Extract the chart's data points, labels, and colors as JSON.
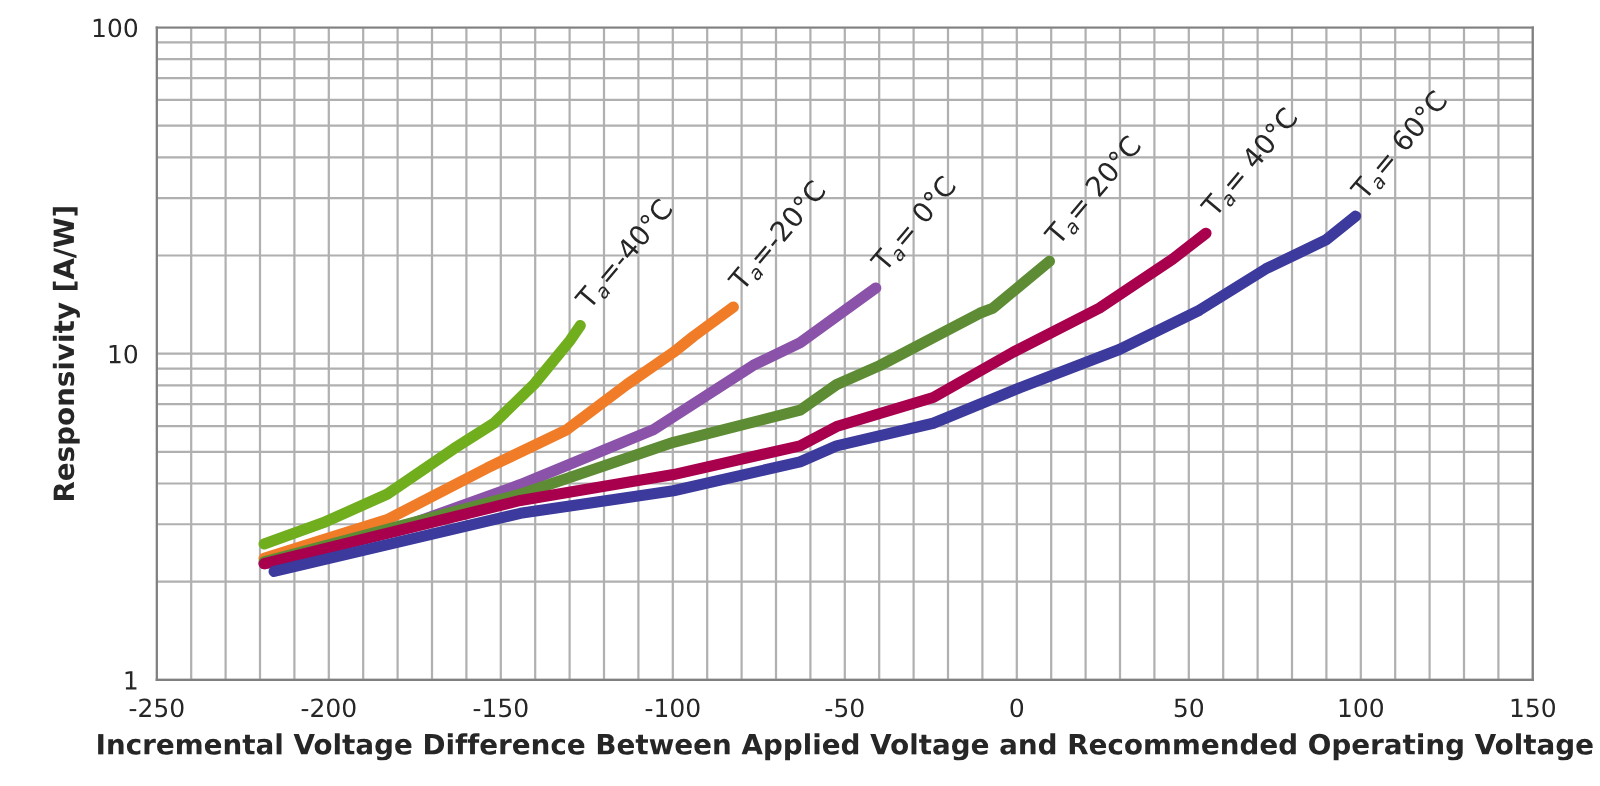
{
  "chart_data": {
    "type": "line",
    "xlabel": "Incremental Voltage Difference Between Applied Voltage and Recommended Operating Voltage",
    "ylabel": "Responsivity [A/W]",
    "xlim": [
      -250,
      150
    ],
    "xticks": [
      -250,
      -200,
      -150,
      -100,
      -50,
      0,
      50,
      100,
      150
    ],
    "ylim": [
      1,
      100
    ],
    "yticks": [
      1,
      10,
      100
    ],
    "log": "y",
    "grid": true,
    "legend": false,
    "line_style": "solid",
    "marker": "none",
    "series": [
      {
        "name": "T$_{a}$=-40°C",
        "color": "#70ae1e",
        "x": [
          -218.8,
          -201.7,
          -183.0,
          -163.7,
          -152.0,
          -140.4,
          -129.8,
          -126.9
        ],
        "values": [
          2.61,
          3.03,
          3.71,
          5.11,
          6.12,
          8.04,
          11.0,
          12.2
        ]
      },
      {
        "name": "T$_{a}$=-20°C",
        "color": "#f07c28",
        "x": [
          -218.8,
          -183.0,
          -154.0,
          -130.8,
          -113.4,
          -99.8,
          -94.0,
          -82.4
        ],
        "values": [
          2.36,
          3.1,
          4.46,
          5.85,
          8.04,
          10.1,
          11.3,
          13.9
        ]
      },
      {
        "name": "T$_{a}$= 0°C",
        "color": "#8a52a8",
        "x": [
          -218.8,
          -183.0,
          -144.3,
          -105.6,
          -76.6,
          -63.0,
          -41.0
        ],
        "values": [
          2.27,
          2.83,
          3.97,
          5.85,
          9.21,
          10.8,
          15.9
        ]
      },
      {
        "name": "T$_{a}$= 20°C",
        "color": "#5e8c34",
        "x": [
          -218.8,
          -144.3,
          -99.8,
          -63.0,
          -52.4,
          -39.8,
          -10.8,
          -6.9,
          9.5
        ],
        "values": [
          2.3,
          3.71,
          5.35,
          6.71,
          8.04,
          9.2,
          13.3,
          13.8,
          19.2
        ]
      },
      {
        "name": "T$_{a}$= 40°C",
        "color": "#a8004c",
        "x": [
          -218.8,
          -144.3,
          -99.8,
          -63.0,
          -52.4,
          -24.3,
          -1.1,
          24.0,
          45.3,
          55.0
        ],
        "values": [
          2.27,
          3.55,
          4.26,
          5.22,
          5.98,
          7.34,
          10.1,
          13.8,
          19.5,
          23.4
        ]
      },
      {
        "name": "T$_{a}$= 60°C",
        "color": "#3c3a9c",
        "x": [
          -215.9,
          -144.3,
          -99.8,
          -63.0,
          -52.4,
          -24.3,
          0.8,
          29.8,
          53.1,
          72.4,
          89.8,
          98.5
        ],
        "values": [
          2.15,
          3.24,
          3.8,
          4.66,
          5.22,
          6.12,
          7.86,
          10.3,
          13.6,
          18.2,
          22.3,
          26.4
        ]
      }
    ]
  }
}
